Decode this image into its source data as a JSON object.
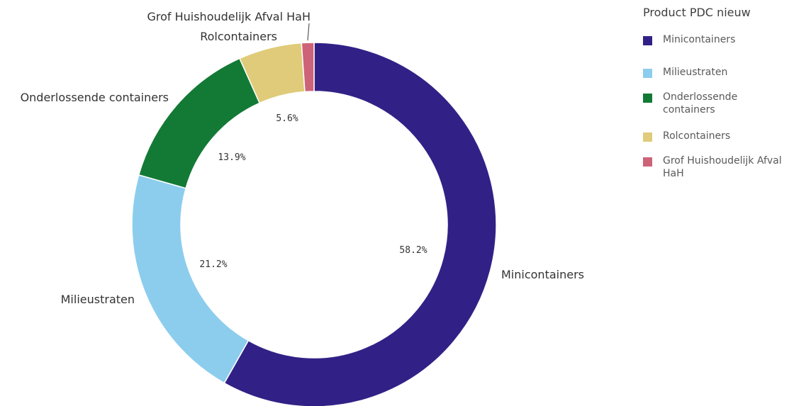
{
  "chart_data": {
    "type": "pie",
    "legend_title": "Product PDC nieuw",
    "legend_position": "right",
    "slices": [
      {
        "label": "Minicontainers",
        "value": 58.2,
        "value_label": "58.2%",
        "color": "#312186"
      },
      {
        "label": "Milieustraten",
        "value": 21.2,
        "value_label": "21.2%",
        "color": "#8ccdee"
      },
      {
        "label": "Onderlossende containers",
        "value": 13.9,
        "value_label": "13.9%",
        "color": "#137a35"
      },
      {
        "label": "Rolcontainers",
        "value": 5.6,
        "value_label": "5.6%",
        "color": "#dfcb79"
      },
      {
        "label": "Grof Huishoudelijk Afval HaH",
        "value": 1.1,
        "value_label": "",
        "color": "#cd6378"
      }
    ]
  }
}
